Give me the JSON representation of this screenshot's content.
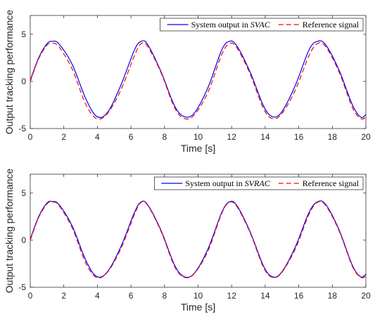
{
  "chart_data": [
    {
      "type": "line",
      "xlabel": "Time [s]",
      "ylabel": "Output tracking performance",
      "xlim": [
        0,
        20
      ],
      "ylim": [
        -5,
        7
      ],
      "xticks": [
        "0",
        "2",
        "4",
        "6",
        "8",
        "10",
        "12",
        "14",
        "16",
        "18",
        "20"
      ],
      "yticks": [
        "5",
        "0",
        "-5"
      ],
      "legend_position": "top-right",
      "series": [
        {
          "name": "System output in SVAC",
          "legend_prefix": "System output in ",
          "legend_italic": "SVAC",
          "style": "solid",
          "color": "#0000ff",
          "x": [
            0,
            0.5,
            1.0,
            1.3,
            1.7,
            2.5,
            3.3,
            3.95,
            4.6,
            5.4,
            6.2,
            6.6,
            7.0,
            7.8,
            8.6,
            9.2,
            9.8,
            10.6,
            11.4,
            11.85,
            12.3,
            13.1,
            13.9,
            14.45,
            15.0,
            15.8,
            16.6,
            17.1,
            17.6,
            18.4,
            19.2,
            19.7,
            20.0
          ],
          "y": [
            0.1,
            2.5,
            4.0,
            4.25,
            4.0,
            1.8,
            -1.8,
            -3.7,
            -3.3,
            -0.4,
            3.3,
            4.25,
            3.9,
            1.0,
            -2.6,
            -3.75,
            -3.3,
            -0.6,
            3.3,
            4.25,
            3.8,
            1.0,
            -2.6,
            -3.75,
            -3.2,
            -0.4,
            3.3,
            4.25,
            3.9,
            1.2,
            -2.5,
            -3.8,
            -3.5
          ]
        },
        {
          "name": "Reference signal",
          "style": "dashed",
          "color": "#ff0000",
          "x": [
            0,
            0.5,
            1.0,
            1.3,
            1.7,
            2.5,
            3.3,
            3.95,
            4.6,
            5.4,
            6.2,
            6.6,
            7.0,
            7.8,
            8.6,
            9.2,
            9.8,
            10.6,
            11.4,
            11.85,
            12.3,
            13.1,
            13.9,
            14.45,
            15.0,
            15.8,
            16.6,
            17.1,
            17.6,
            18.4,
            19.2,
            19.7,
            20.0
          ],
          "y": [
            0,
            2.4,
            3.85,
            4.05,
            3.7,
            1.3,
            -2.4,
            -3.95,
            -3.4,
            -0.9,
            2.7,
            4.0,
            3.7,
            0.9,
            -2.8,
            -3.95,
            -3.5,
            -1.1,
            2.8,
            4.0,
            3.6,
            0.8,
            -2.9,
            -3.95,
            -3.4,
            -0.9,
            2.7,
            4.0,
            3.7,
            1.0,
            -2.8,
            -3.95,
            -3.8
          ]
        }
      ]
    },
    {
      "type": "line",
      "xlabel": "Time [s]",
      "ylabel": "Output tracking performance",
      "xlim": [
        0,
        20
      ],
      "ylim": [
        -5,
        7
      ],
      "xticks": [
        "0",
        "2",
        "4",
        "6",
        "8",
        "10",
        "12",
        "14",
        "16",
        "18",
        "20"
      ],
      "yticks": [
        "5",
        "0",
        "-5"
      ],
      "legend_position": "top-right",
      "series": [
        {
          "name": "System output in SVRAC",
          "legend_prefix": "System output in ",
          "legend_italic": "SVRAC",
          "style": "solid",
          "color": "#0000ff",
          "x": [
            0,
            0.5,
            1.0,
            1.3,
            1.7,
            2.5,
            3.3,
            3.95,
            4.6,
            5.4,
            6.2,
            6.6,
            7.0,
            7.8,
            8.6,
            9.2,
            9.8,
            10.6,
            11.4,
            11.85,
            12.3,
            13.1,
            13.9,
            14.45,
            15.0,
            15.8,
            16.6,
            17.1,
            17.6,
            18.4,
            19.2,
            19.7,
            20.0
          ],
          "y": [
            0.1,
            2.5,
            3.95,
            4.1,
            3.8,
            1.5,
            -2.1,
            -3.85,
            -3.35,
            -0.7,
            2.9,
            4.05,
            3.75,
            1.0,
            -2.65,
            -3.9,
            -3.45,
            -0.9,
            2.9,
            4.05,
            3.7,
            0.9,
            -2.75,
            -3.9,
            -3.35,
            -0.7,
            2.9,
            4.05,
            3.8,
            1.1,
            -2.7,
            -3.9,
            -3.6
          ]
        },
        {
          "name": "Reference signal",
          "style": "dashed",
          "color": "#ff0000",
          "x": [
            0,
            0.5,
            1.0,
            1.3,
            1.7,
            2.5,
            3.3,
            3.95,
            4.6,
            5.4,
            6.2,
            6.6,
            7.0,
            7.8,
            8.6,
            9.2,
            9.8,
            10.6,
            11.4,
            11.85,
            12.3,
            13.1,
            13.9,
            14.45,
            15.0,
            15.8,
            16.6,
            17.1,
            17.6,
            18.4,
            19.2,
            19.7,
            20.0
          ],
          "y": [
            0,
            2.4,
            3.85,
            4.05,
            3.7,
            1.3,
            -2.4,
            -3.95,
            -3.4,
            -0.9,
            2.7,
            4.0,
            3.7,
            0.9,
            -2.8,
            -3.95,
            -3.5,
            -1.1,
            2.8,
            4.0,
            3.6,
            0.8,
            -2.9,
            -3.95,
            -3.4,
            -0.9,
            2.7,
            4.0,
            3.7,
            1.0,
            -2.8,
            -3.95,
            -3.8
          ]
        }
      ]
    }
  ]
}
